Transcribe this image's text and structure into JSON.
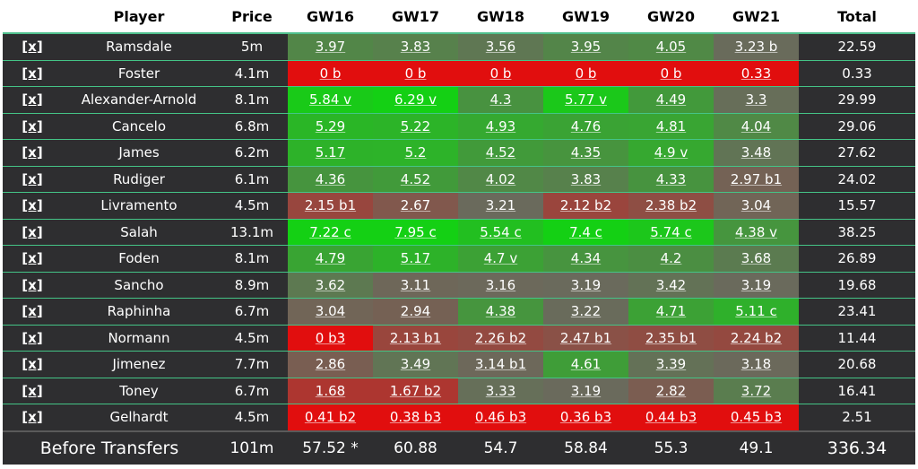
{
  "header": {
    "remove": "",
    "player": "Player",
    "price": "Price",
    "gws": [
      "GW16",
      "GW17",
      "GW18",
      "GW19",
      "GW20",
      "GW21"
    ],
    "total": "Total"
  },
  "remove_label": "[x]",
  "rows": [
    {
      "player": "Ramsdale",
      "price": "5m",
      "scores": [
        "3.97",
        "3.83",
        "3.56",
        "3.95",
        "4.05",
        "3.23 b"
      ],
      "total": "22.59"
    },
    {
      "player": "Foster",
      "price": "4.1m",
      "scores": [
        "0 b",
        "0 b",
        "0 b",
        "0 b",
        "0 b",
        "0.33"
      ],
      "total": "0.33"
    },
    {
      "player": "Alexander-Arnold",
      "price": "8.1m",
      "scores": [
        "5.84 v",
        "6.29 v",
        "4.3",
        "5.77 v",
        "4.49",
        "3.3"
      ],
      "total": "29.99"
    },
    {
      "player": "Cancelo",
      "price": "6.8m",
      "scores": [
        "5.29",
        "5.22",
        "4.93",
        "4.76",
        "4.81",
        "4.04"
      ],
      "total": "29.06"
    },
    {
      "player": "James",
      "price": "6.2m",
      "scores": [
        "5.17",
        "5.2",
        "4.52",
        "4.35",
        "4.9 v",
        "3.48"
      ],
      "total": "27.62"
    },
    {
      "player": "Rudiger",
      "price": "6.1m",
      "scores": [
        "4.36",
        "4.52",
        "4.02",
        "3.83",
        "4.33",
        "2.97 b1"
      ],
      "total": "24.02"
    },
    {
      "player": "Livramento",
      "price": "4.5m",
      "scores": [
        "2.15 b1",
        "2.67",
        "3.21",
        "2.12 b2",
        "2.38 b2",
        "3.04"
      ],
      "total": "15.57"
    },
    {
      "player": "Salah",
      "price": "13.1m",
      "scores": [
        "7.22 c",
        "7.95 c",
        "5.54 c",
        "7.4 c",
        "5.74 c",
        "4.38 v"
      ],
      "total": "38.25"
    },
    {
      "player": "Foden",
      "price": "8.1m",
      "scores": [
        "4.79",
        "5.17",
        "4.7 v",
        "4.34",
        "4.2",
        "3.68"
      ],
      "total": "26.89"
    },
    {
      "player": "Sancho",
      "price": "8.9m",
      "scores": [
        "3.62",
        "3.11",
        "3.16",
        "3.19",
        "3.42",
        "3.19"
      ],
      "total": "19.68"
    },
    {
      "player": "Raphinha",
      "price": "6.7m",
      "scores": [
        "3.04",
        "2.94",
        "4.38",
        "3.22",
        "4.71",
        "5.11 c"
      ],
      "total": "23.41"
    },
    {
      "player": "Normann",
      "price": "4.5m",
      "scores": [
        "0 b3",
        "2.13 b1",
        "2.26 b2",
        "2.47 b1",
        "2.35 b1",
        "2.24 b2"
      ],
      "total": "11.44"
    },
    {
      "player": "Jimenez",
      "price": "7.7m",
      "scores": [
        "2.86",
        "3.49",
        "3.14 b1",
        "4.61",
        "3.39",
        "3.18"
      ],
      "total": "20.68"
    },
    {
      "player": "Toney",
      "price": "6.7m",
      "scores": [
        "1.68",
        "1.67 b2",
        "3.33",
        "3.19",
        "2.82",
        "3.72"
      ],
      "total": "16.41"
    },
    {
      "player": "Gelhardt",
      "price": "4.5m",
      "scores": [
        "0.41 b2",
        "0.38 b3",
        "0.46 b3",
        "0.36 b3",
        "0.44 b3",
        "0.45 b3"
      ],
      "total": "2.51"
    }
  ],
  "footer": {
    "label": "Before Transfers",
    "price": "101m",
    "gws": [
      "57.52 *",
      "60.88",
      "54.7",
      "58.84",
      "55.3",
      "49.1"
    ],
    "total": "336.34"
  },
  "colors": {
    "dark": "#2e2e30",
    "border": "#44c486",
    "header_rule": "#4fc08d",
    "red": "#e10e0e",
    "green": "#14d014",
    "mid": "#6a6a5c"
  }
}
